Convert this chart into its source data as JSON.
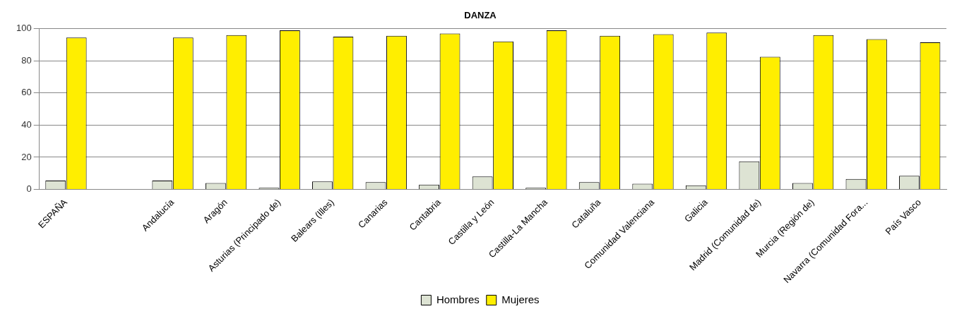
{
  "chart_data": {
    "type": "bar",
    "title": "DANZA",
    "categories": [
      "ESPAÑA",
      null,
      "Andalucía",
      "Aragón",
      "Asturias (Principado de)",
      "Balears (Illes)",
      "Canarias",
      "Cantabria",
      "Castilla y León",
      "Castilla-La Mancha",
      "Cataluña",
      "Comunidad Valenciana",
      "Galicia",
      "Madrid (Comunidad de)",
      "Murcia (Región de)",
      "Navarra (Comunidad Fora...",
      "País Vasco"
    ],
    "series": [
      {
        "name": "Hombres",
        "color": "#dde3d3",
        "values": [
          5.5,
          null,
          5.5,
          4,
          1,
          5,
          4.5,
          3,
          8,
          1,
          4.5,
          3.5,
          2.5,
          17.5,
          4,
          6.5,
          8.5
        ]
      },
      {
        "name": "Mujeres",
        "color": "#ffee00",
        "values": [
          94.5,
          null,
          94.5,
          96,
          99,
          95,
          95.5,
          97,
          92,
          99,
          95.5,
          96.5,
          97.5,
          82.5,
          96,
          93.5,
          91.5
        ]
      }
    ],
    "ylim": [
      0,
      100
    ],
    "yticks": [
      0,
      20,
      40,
      60,
      80,
      100
    ],
    "grid": "y",
    "legend": "bottom"
  }
}
